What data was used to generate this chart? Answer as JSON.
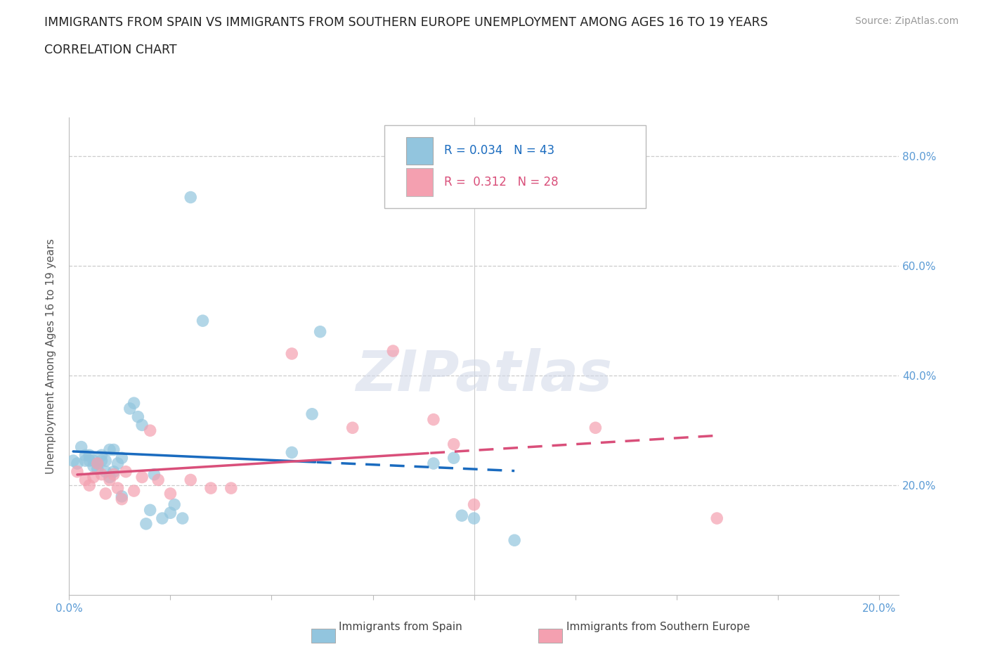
{
  "title_line1": "IMMIGRANTS FROM SPAIN VS IMMIGRANTS FROM SOUTHERN EUROPE UNEMPLOYMENT AMONG AGES 16 TO 19 YEARS",
  "title_line2": "CORRELATION CHART",
  "source": "Source: ZipAtlas.com",
  "ylabel": "Unemployment Among Ages 16 to 19 years",
  "xlim": [
    0.0,
    0.205
  ],
  "ylim": [
    0.0,
    0.87
  ],
  "watermark_text": "ZIPatlas",
  "spain_color": "#92C5DE",
  "southern_color": "#F4A0B0",
  "trend_spain_color": "#1A6BBF",
  "trend_southern_color": "#D94F7A",
  "spain_R": "0.034",
  "spain_N": "43",
  "southern_R": "0.312",
  "southern_N": "28",
  "spain_scatter_x": [
    0.001,
    0.002,
    0.003,
    0.004,
    0.004,
    0.005,
    0.005,
    0.006,
    0.006,
    0.007,
    0.007,
    0.008,
    0.008,
    0.009,
    0.009,
    0.01,
    0.01,
    0.011,
    0.011,
    0.012,
    0.013,
    0.013,
    0.015,
    0.016,
    0.017,
    0.018,
    0.019,
    0.02,
    0.021,
    0.023,
    0.025,
    0.026,
    0.028,
    0.03,
    0.033,
    0.055,
    0.06,
    0.062,
    0.09,
    0.095,
    0.097,
    0.1,
    0.11
  ],
  "spain_scatter_y": [
    0.245,
    0.24,
    0.27,
    0.245,
    0.255,
    0.245,
    0.255,
    0.235,
    0.245,
    0.23,
    0.24,
    0.245,
    0.255,
    0.225,
    0.245,
    0.215,
    0.265,
    0.225,
    0.265,
    0.24,
    0.25,
    0.18,
    0.34,
    0.35,
    0.325,
    0.31,
    0.13,
    0.155,
    0.22,
    0.14,
    0.15,
    0.165,
    0.14,
    0.725,
    0.5,
    0.26,
    0.33,
    0.48,
    0.24,
    0.25,
    0.145,
    0.14,
    0.1
  ],
  "southern_scatter_x": [
    0.002,
    0.004,
    0.005,
    0.006,
    0.007,
    0.008,
    0.009,
    0.01,
    0.011,
    0.012,
    0.013,
    0.014,
    0.016,
    0.018,
    0.02,
    0.022,
    0.025,
    0.03,
    0.035,
    0.04,
    0.055,
    0.07,
    0.08,
    0.09,
    0.095,
    0.1,
    0.13,
    0.16
  ],
  "southern_scatter_y": [
    0.225,
    0.21,
    0.2,
    0.215,
    0.24,
    0.22,
    0.185,
    0.21,
    0.22,
    0.195,
    0.175,
    0.225,
    0.19,
    0.215,
    0.3,
    0.21,
    0.185,
    0.21,
    0.195,
    0.195,
    0.44,
    0.305,
    0.445,
    0.32,
    0.275,
    0.165,
    0.305,
    0.14
  ],
  "ytick_positions": [
    0.0,
    0.2,
    0.4,
    0.6,
    0.8
  ],
  "ytick_labels_right": [
    "",
    "20.0%",
    "40.0%",
    "60.0%",
    "80.0%"
  ],
  "xtick_positions": [
    0.0,
    0.025,
    0.05,
    0.075,
    0.1,
    0.125,
    0.15,
    0.175,
    0.2
  ],
  "xtick_labels": [
    "0.0%",
    "",
    "",
    "",
    "",
    "",
    "",
    "",
    "20.0%"
  ],
  "background_color": "#ffffff",
  "grid_color": "#cccccc"
}
